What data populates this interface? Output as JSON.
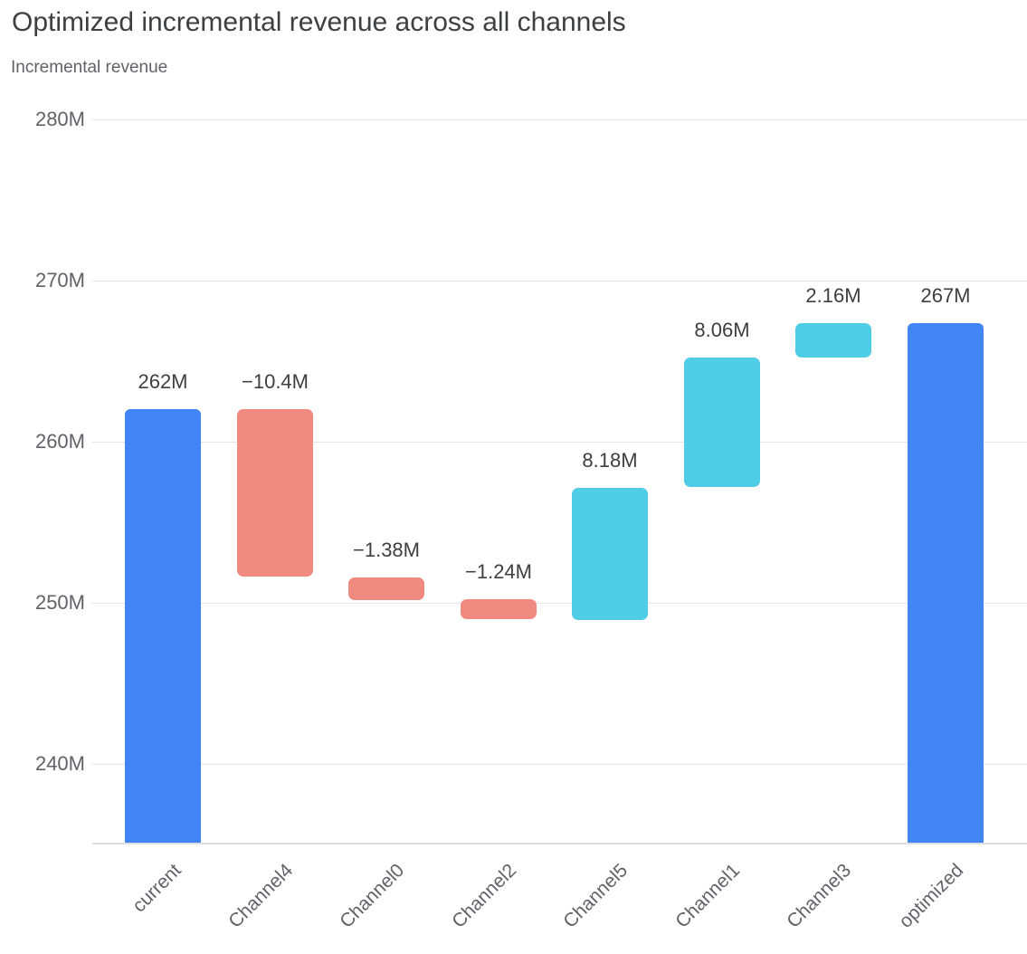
{
  "page": {
    "title": "Optimized incremental revenue across all channels",
    "subtitle": "Incremental revenue"
  },
  "chart_data": {
    "type": "waterfall",
    "title": "Optimized incremental revenue across all channels",
    "subtitle": "Incremental revenue",
    "categories": [
      "current",
      "Channel4",
      "Channel0",
      "Channel2",
      "Channel5",
      "Channel1",
      "Channel3",
      "optimized"
    ],
    "bars": [
      {
        "category": "current",
        "kind": "total",
        "value": 262,
        "label": "262M"
      },
      {
        "category": "Channel4",
        "kind": "decrease",
        "value": -10.4,
        "label": "−10.4M"
      },
      {
        "category": "Channel0",
        "kind": "decrease",
        "value": -1.38,
        "label": "−1.38M"
      },
      {
        "category": "Channel2",
        "kind": "decrease",
        "value": -1.24,
        "label": "−1.24M"
      },
      {
        "category": "Channel5",
        "kind": "increase",
        "value": 8.18,
        "label": "8.18M"
      },
      {
        "category": "Channel1",
        "kind": "increase",
        "value": 8.06,
        "label": "8.06M"
      },
      {
        "category": "Channel3",
        "kind": "increase",
        "value": 2.16,
        "label": "2.16M"
      },
      {
        "category": "optimized",
        "kind": "total",
        "value": 267.38,
        "label": "267M"
      }
    ],
    "y_axis": {
      "unit": "M",
      "ticks": [
        {
          "value": 280,
          "label": "280M"
        },
        {
          "value": 270,
          "label": "270M"
        },
        {
          "value": 260,
          "label": "260M"
        },
        {
          "value": 250,
          "label": "250M"
        },
        {
          "value": 240,
          "label": "240M"
        }
      ],
      "min": 235.1,
      "max": 281.2,
      "grid": true
    },
    "x_axis": {
      "label_rotation_deg": -45
    },
    "legend": {
      "visible": false
    },
    "colors": {
      "total": "#4285F4",
      "increase": "#4FCDE6",
      "decrease": "#F0897E",
      "grid": "#E6E6E9",
      "axis_line": "#DDDEE2",
      "tick_text": "#5F6368",
      "value_text": "#3C4043"
    }
  }
}
